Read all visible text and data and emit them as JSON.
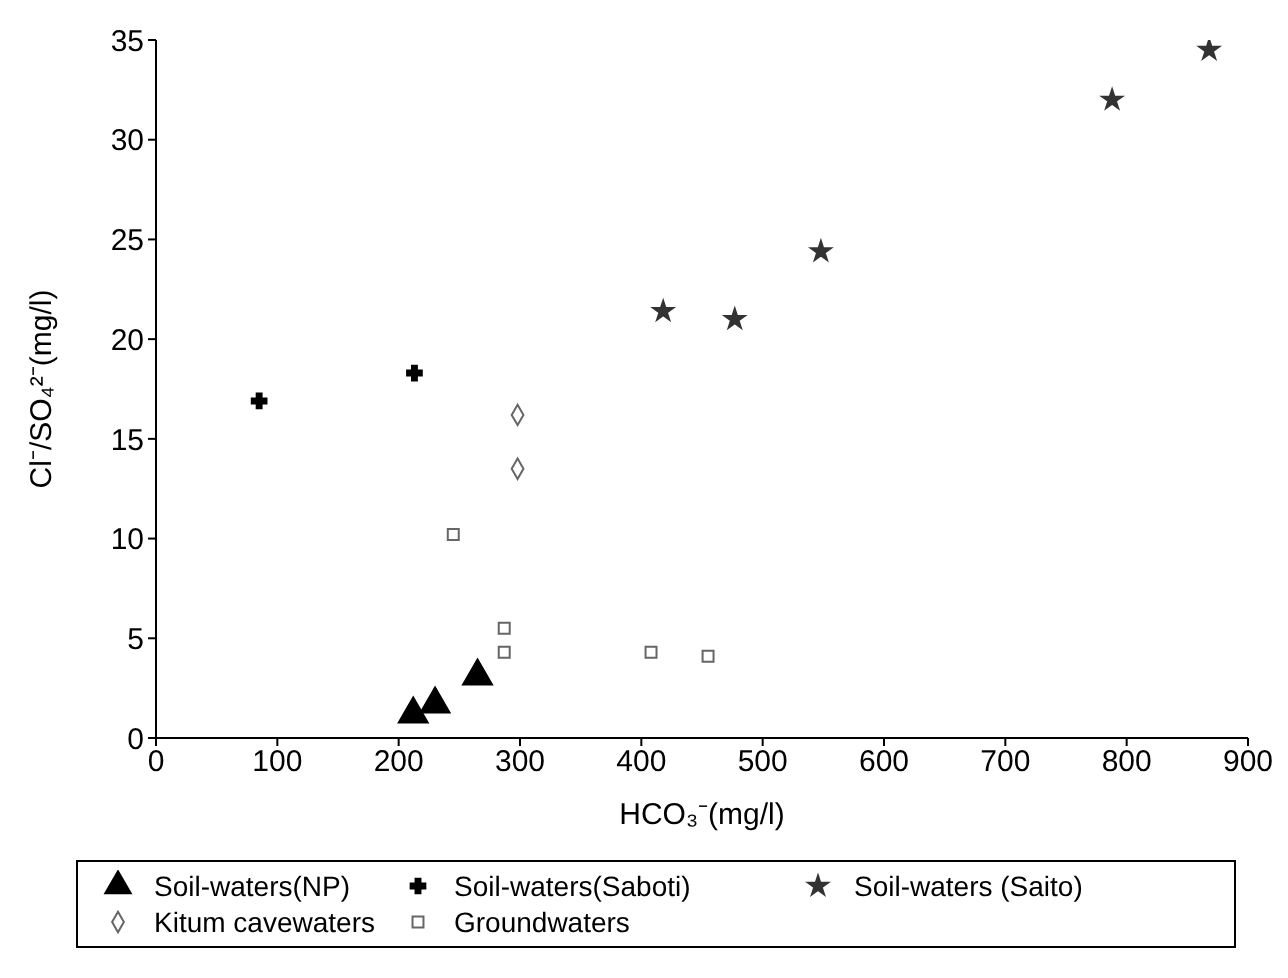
{
  "chart_data": {
    "type": "scatter",
    "xlabel": "HCO₃⁻(mg/l)",
    "ylabel": "Cl⁻/SO₄²⁻(mg/l)",
    "xlim": [
      0,
      900
    ],
    "xticks": [
      0,
      100,
      200,
      300,
      400,
      500,
      600,
      700,
      800,
      900
    ],
    "ylim": [
      0,
      35
    ],
    "yticks": [
      0,
      5,
      10,
      15,
      20,
      25,
      30,
      35
    ],
    "grid": false,
    "legend": "bottom",
    "series": [
      {
        "name": "Soil-waters(NP)",
        "color": "#000000",
        "marker": "triangle",
        "x": [
          212,
          230,
          265
        ],
        "values": [
          1.2,
          1.7,
          3.1
        ]
      },
      {
        "name": "Soil-waters(Saboti)",
        "color": "#000000",
        "marker": "cross",
        "x": [
          85,
          213
        ],
        "values": [
          16.9,
          18.3
        ]
      },
      {
        "name": "Soil-waters (Saito)",
        "color": "#333333",
        "marker": "star",
        "x": [
          418,
          477,
          548,
          788,
          868
        ],
        "values": [
          21.4,
          21.0,
          24.4,
          32.0,
          34.5
        ]
      },
      {
        "name": "Kitum cavewaters",
        "color": "#666666",
        "marker": "diamond",
        "x": [
          298,
          298
        ],
        "values": [
          16.2,
          13.5
        ]
      },
      {
        "name": "Groundwaters",
        "color": "#666666",
        "marker": "square",
        "x": [
          245,
          287,
          287,
          408,
          455
        ],
        "values": [
          10.2,
          5.5,
          4.3,
          4.3,
          4.1
        ]
      }
    ]
  }
}
